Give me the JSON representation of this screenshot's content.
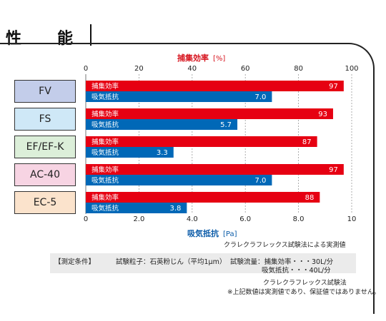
{
  "page": {
    "heading": "性　能"
  },
  "chart_data": {
    "type": "bar",
    "categories": [
      "FV",
      "FS",
      "EF/EF-K",
      "AC-40",
      "EC-5"
    ],
    "category_colors": [
      "#c3cdea",
      "#cfe8f7",
      "#dcefd9",
      "#f7d4e3",
      "#fbe3cc"
    ],
    "series": [
      {
        "name": "捕集効率",
        "values": [
          97,
          93,
          87,
          97,
          88
        ],
        "labels": [
          "97",
          "93",
          "87",
          "97",
          "88"
        ],
        "color": "#e60012"
      },
      {
        "name": "吸気抵抗",
        "values": [
          7.0,
          5.7,
          3.3,
          7.0,
          3.8
        ],
        "labels": [
          "7.0",
          "5.7",
          "3.3",
          "7.0",
          "3.8"
        ],
        "color": "#0068b7"
      }
    ],
    "top_axis": {
      "title": "捕集効率",
      "unit": "[%]",
      "range": [
        0,
        100
      ],
      "ticks": [
        "0",
        "20",
        "40",
        "60",
        "80",
        "100"
      ]
    },
    "bottom_axis": {
      "title": "吸気抵抗",
      "unit": "[Pa]",
      "range": [
        0,
        10
      ],
      "ticks": [
        "0",
        "2.0",
        "4.0",
        "6.0",
        "8.0",
        "10"
      ]
    },
    "grid": "vertical-dashed"
  },
  "notes": {
    "method": "クラレクラフレックス試験法による実測値",
    "conditions_label": "【測定条件】",
    "particle": "試験粒子：石英粉じん（平均1μm）",
    "flow_efficiency": "試験流量：捕集効率・・・30L/分",
    "flow_resistance": "吸気抵抗・・・40L/分",
    "method_name": "クラレクラフレックス試験法",
    "disclaimer": "※上記数値は実測値であり、保証値ではありません。"
  }
}
